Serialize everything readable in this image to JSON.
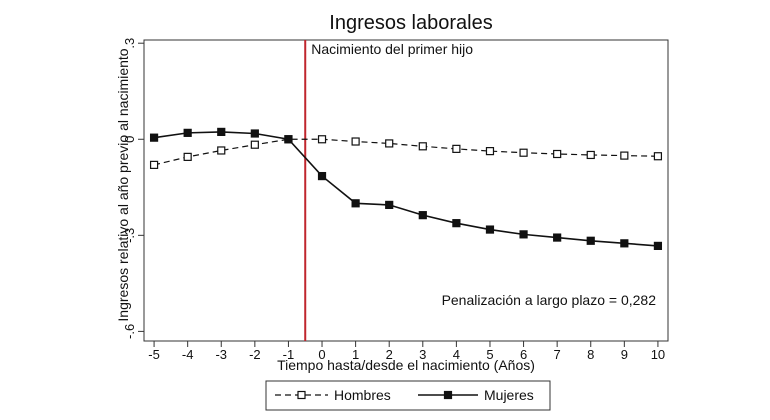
{
  "chart_data": {
    "type": "line",
    "title": "Ingresos laborales",
    "xlabel": "Tiempo hasta/desde el nacimiento (Años)",
    "ylabel": "Ingresos relativo al año previo al nacimiento",
    "x": [
      -5,
      -4,
      -3,
      -2,
      -1,
      0,
      1,
      2,
      3,
      4,
      5,
      6,
      7,
      8,
      9,
      10
    ],
    "xlim": [
      -5.3,
      10.3
    ],
    "ylim": [
      -0.63,
      0.31
    ],
    "yticks": [
      {
        "value": 0.3,
        "label": ".3"
      },
      {
        "value": 0,
        "label": "0"
      },
      {
        "value": -0.3,
        "label": "-.3"
      },
      {
        "value": -0.6,
        "label": "-.6"
      }
    ],
    "grid": false,
    "legend_position": "bottom",
    "series": [
      {
        "name": "Hombres",
        "style": "dashed",
        "marker": "hollow-square",
        "values": [
          -0.08,
          -0.055,
          -0.035,
          -0.017,
          0.0,
          0.0,
          -0.007,
          -0.013,
          -0.022,
          -0.03,
          -0.037,
          -0.042,
          -0.046,
          -0.049,
          -0.051,
          -0.053
        ]
      },
      {
        "name": "Mujeres",
        "style": "solid",
        "marker": "filled-square",
        "values": [
          0.005,
          0.02,
          0.023,
          0.018,
          0.0,
          -0.115,
          -0.2,
          -0.205,
          -0.237,
          -0.262,
          -0.282,
          -0.297,
          -0.307,
          -0.317,
          -0.325,
          -0.333
        ]
      }
    ],
    "vline": {
      "x": -0.5,
      "label": "Nacimiento del primer hijo",
      "color": "#c0262d"
    },
    "annotation": "Penalización a largo plazo = 0,282"
  }
}
